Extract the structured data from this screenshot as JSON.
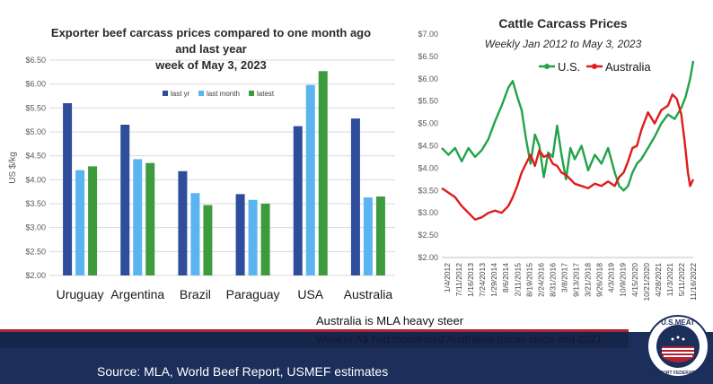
{
  "left": {
    "title_lines": [
      "Exporter beef carcass prices compared to one month ago",
      "and last year",
      "week of May 3, 2023"
    ]
  },
  "right": {
    "title": "Cattle Carcass Prices",
    "subtitle": "Weekly Jan 2012 to May 3, 2023"
  },
  "caption": "Australia is MLA heavy steer",
  "note": "Weaker A$ had moderated Australian prices since mid-2021",
  "source": "Source: MLA, World Beef Report, USMEF estimates",
  "logo": {
    "top_text": "U.S.MEAT",
    "bottom_text": "EXPORT FEDERATION"
  },
  "colors": {
    "last_yr": "#2e4d9b",
    "last_month": "#5ab4f0",
    "latest": "#3d9b3d",
    "us": "#22a34a",
    "australia": "#e01b1b",
    "navy": "#1b2f5a"
  },
  "chart_data": [
    {
      "type": "bar",
      "title": "Exporter beef carcass prices compared to one month ago and last year week of May 3, 2023",
      "ylabel": "US $/kg",
      "xlabel": "",
      "ylim": [
        2.0,
        6.5
      ],
      "yticks": [
        "$2.00",
        "$2.50",
        "$3.00",
        "$3.50",
        "$4.00",
        "$4.50",
        "$5.00",
        "$5.50",
        "$6.00",
        "$6.50"
      ],
      "categories": [
        "Uruguay",
        "Argentina",
        "Brazil",
        "Paraguay",
        "USA",
        "Australia"
      ],
      "series": [
        {
          "name": "last yr",
          "values": [
            5.6,
            5.15,
            4.18,
            3.7,
            5.12,
            5.28
          ]
        },
        {
          "name": "last month",
          "values": [
            4.2,
            4.43,
            3.72,
            3.58,
            5.98,
            3.63
          ]
        },
        {
          "name": "latest",
          "values": [
            4.28,
            4.35,
            3.47,
            3.5,
            6.27,
            3.65
          ]
        }
      ],
      "legend": "top-center"
    },
    {
      "type": "line",
      "title": "Cattle Carcass Prices",
      "subtitle": "Weekly Jan 2012 to May 3, 2023",
      "ylim": [
        2.0,
        7.0
      ],
      "yticks": [
        "$2.00",
        "$2.50",
        "$3.00",
        "$3.50",
        "$4.00",
        "$4.50",
        "$5.00",
        "$5.50",
        "$6.00",
        "$6.50",
        "$7.00"
      ],
      "x_tick_labels": [
        "1/4/2012",
        "7/11/2012",
        "1/16/2013",
        "7/24/2013",
        "1/29/2014",
        "8/6/2014",
        "2/11/2015",
        "8/19/2015",
        "2/24/2016",
        "8/31/2016",
        "3/8/2017",
        "9/13/2017",
        "3/21/2018",
        "9/26/2018",
        "4/3/2019",
        "10/9/2019",
        "4/15/2020",
        "10/21/2020",
        "4/28/2021",
        "11/3/2021",
        "5/11/2022",
        "11/16/2022"
      ],
      "x_range": [
        2012.0,
        2023.34
      ],
      "legend": "top-left",
      "series": [
        {
          "name": "U.S.",
          "x": [
            2012.0,
            2012.3,
            2012.6,
            2012.9,
            2013.2,
            2013.5,
            2013.8,
            2014.1,
            2014.4,
            2014.7,
            2015.0,
            2015.2,
            2015.4,
            2015.6,
            2015.8,
            2016.0,
            2016.2,
            2016.4,
            2016.6,
            2016.8,
            2017.0,
            2017.2,
            2017.4,
            2017.6,
            2017.8,
            2018.0,
            2018.3,
            2018.6,
            2018.9,
            2019.2,
            2019.5,
            2019.8,
            2020.0,
            2020.2,
            2020.4,
            2020.6,
            2020.8,
            2021.0,
            2021.3,
            2021.6,
            2021.9,
            2022.2,
            2022.5,
            2022.8,
            2023.0,
            2023.2,
            2023.34
          ],
          "y": [
            4.45,
            4.3,
            4.45,
            4.15,
            4.45,
            4.25,
            4.4,
            4.65,
            5.05,
            5.4,
            5.8,
            5.95,
            5.6,
            5.3,
            4.65,
            4.1,
            4.75,
            4.5,
            3.8,
            4.35,
            4.25,
            4.95,
            4.3,
            3.75,
            4.45,
            4.2,
            4.5,
            3.95,
            4.3,
            4.1,
            4.45,
            3.9,
            3.6,
            3.5,
            3.6,
            3.9,
            4.1,
            4.2,
            4.45,
            4.7,
            5.0,
            5.2,
            5.1,
            5.35,
            5.6,
            6.0,
            6.4
          ]
        },
        {
          "name": "Australia",
          "x": [
            2012.0,
            2012.3,
            2012.6,
            2012.9,
            2013.2,
            2013.5,
            2013.8,
            2014.1,
            2014.4,
            2014.7,
            2015.0,
            2015.2,
            2015.4,
            2015.6,
            2015.8,
            2016.0,
            2016.2,
            2016.4,
            2016.6,
            2016.8,
            2017.0,
            2017.2,
            2017.4,
            2017.6,
            2017.8,
            2018.0,
            2018.3,
            2018.6,
            2018.9,
            2019.2,
            2019.5,
            2019.8,
            2020.0,
            2020.2,
            2020.4,
            2020.6,
            2020.8,
            2021.0,
            2021.3,
            2021.6,
            2021.9,
            2022.2,
            2022.4,
            2022.6,
            2022.8,
            2022.95,
            2023.1,
            2023.2,
            2023.34
          ],
          "y": [
            3.55,
            3.45,
            3.35,
            3.15,
            3.0,
            2.85,
            2.9,
            3.0,
            3.05,
            3.0,
            3.15,
            3.35,
            3.6,
            3.9,
            4.1,
            4.3,
            4.05,
            4.4,
            4.25,
            4.3,
            4.1,
            4.05,
            3.9,
            3.85,
            3.75,
            3.65,
            3.6,
            3.55,
            3.65,
            3.6,
            3.7,
            3.6,
            3.8,
            3.9,
            4.15,
            4.45,
            4.5,
            4.85,
            5.25,
            5.0,
            5.3,
            5.4,
            5.65,
            5.55,
            5.2,
            4.6,
            3.9,
            3.6,
            3.75
          ]
        }
      ]
    }
  ]
}
